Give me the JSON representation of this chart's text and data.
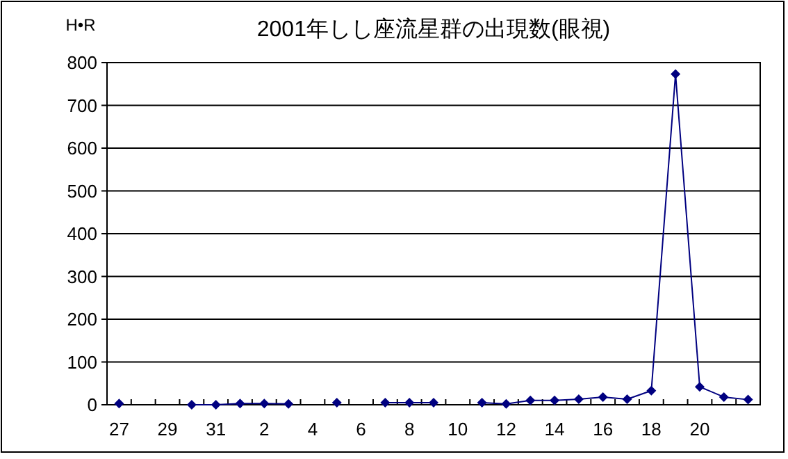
{
  "chart_data": {
    "type": "line",
    "title": "2001年しし座流星群の出現数(眼視)",
    "ylabel": "H•R",
    "categories": [
      "27",
      null,
      "29",
      null,
      "31",
      null,
      "2",
      null,
      "4",
      null,
      "6",
      null,
      "8",
      null,
      "10",
      null,
      "12",
      null,
      "14",
      null,
      "16",
      null,
      "18",
      null,
      "20",
      null,
      null
    ],
    "series": [
      {
        "color": "#000080",
        "values": [
          3,
          null,
          null,
          0,
          0,
          3,
          3,
          2,
          null,
          5,
          null,
          5,
          5,
          5,
          null,
          5,
          2,
          10,
          10,
          13,
          18,
          13,
          33,
          773,
          42,
          18,
          12
        ]
      }
    ],
    "ylim": [
      0,
      800
    ],
    "yticks": [
      0,
      100,
      200,
      300,
      400,
      500,
      600,
      700,
      800
    ],
    "grid": "y",
    "marker": "diamond",
    "line_style": "solid"
  }
}
